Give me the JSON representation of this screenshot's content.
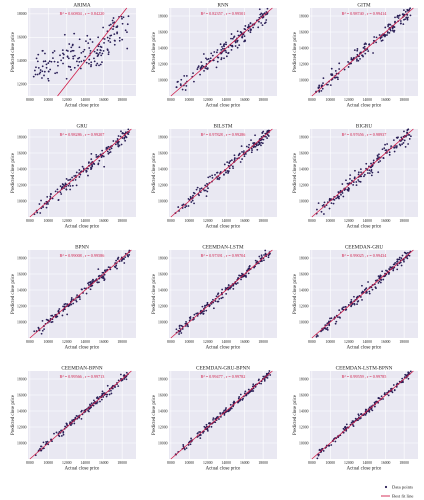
{
  "figure": {
    "legend": {
      "points_label": "Data points",
      "line_label": "Best fit line",
      "position": "bottom-right"
    },
    "colors": {
      "panel_bg": "#e9e8f2",
      "grid": "#ffffff",
      "points": "#2a1f57",
      "line": "#d11f4a",
      "annotation": "#d11f4a",
      "text": "#222222"
    }
  },
  "chart_data": [
    {
      "type": "scatter",
      "title": "ARIMA",
      "annotation": "R² = 0.60804 , r = 0.84220",
      "xlabel": "Actual close price",
      "ylabel": "Predicted close price",
      "xlim": [
        7800,
        19500
      ],
      "ylim": [
        11000,
        18500
      ],
      "xticks": [
        8000,
        10000,
        12000,
        14000,
        16000,
        18000
      ],
      "yticks": [
        12000,
        14000,
        16000,
        18000
      ],
      "grid": true,
      "noise": 750,
      "curve": "arima"
    },
    {
      "type": "scatter",
      "title": "RNN",
      "annotation": "R² = 0.82357 , r = 0.99501",
      "xlabel": "Actual close price",
      "ylabel": "Predicted close price",
      "xlim": [
        7800,
        19500
      ],
      "ylim": [
        8000,
        19000
      ],
      "xticks": [
        8000,
        10000,
        12000,
        14000,
        16000,
        18000
      ],
      "yticks": [
        10000,
        12000,
        14000,
        16000,
        18000
      ],
      "grid": true,
      "noise": 520
    },
    {
      "type": "scatter",
      "title": "GITM",
      "annotation": "R² = 0.98740 , r = 0.99414",
      "xlabel": "Actual close price",
      "ylabel": "Predicted close price",
      "xlim": [
        7800,
        19500
      ],
      "ylim": [
        8000,
        19000
      ],
      "xticks": [
        8000,
        10000,
        12000,
        14000,
        16000,
        18000
      ],
      "yticks": [
        10000,
        12000,
        14000,
        16000,
        18000
      ],
      "grid": true,
      "noise": 420
    },
    {
      "type": "scatter",
      "title": "GRU",
      "annotation": "R² = 0.98286 , r = 0.99207",
      "xlabel": "Actual close price",
      "ylabel": "Predicted close price",
      "xlim": [
        7800,
        19500
      ],
      "ylim": [
        8000,
        19000
      ],
      "xticks": [
        8000,
        10000,
        12000,
        14000,
        16000,
        18000
      ],
      "yticks": [
        10000,
        12000,
        14000,
        16000,
        18000
      ],
      "grid": true,
      "noise": 440
    },
    {
      "type": "scatter",
      "title": "BILSTM",
      "annotation": "R² = 0.97828 , r = 0.99286",
      "xlabel": "Actual close price",
      "ylabel": "Predicted close price",
      "xlim": [
        7800,
        19500
      ],
      "ylim": [
        8000,
        19000
      ],
      "xticks": [
        8000,
        10000,
        12000,
        14000,
        16000,
        18000
      ],
      "yticks": [
        10000,
        12000,
        14000,
        16000,
        18000
      ],
      "grid": true,
      "noise": 430
    },
    {
      "type": "scatter",
      "title": "BIGRU",
      "annotation": "R² = 0.97656 , r = 0.98937",
      "xlabel": "Actual close price",
      "ylabel": "Predicted close price",
      "xlim": [
        7800,
        19500
      ],
      "ylim": [
        8000,
        19000
      ],
      "xticks": [
        8000,
        10000,
        12000,
        14000,
        16000,
        18000
      ],
      "yticks": [
        10000,
        12000,
        14000,
        16000,
        18000
      ],
      "grid": true,
      "noise": 470
    },
    {
      "type": "scatter",
      "title": "BPNN",
      "annotation": "R² = 0.99008 , r = 0.99586",
      "xlabel": "Actual close price",
      "ylabel": "Predicted close price",
      "xlim": [
        7800,
        19500
      ],
      "ylim": [
        8000,
        19000
      ],
      "xticks": [
        8000,
        10000,
        12000,
        14000,
        16000,
        18000
      ],
      "yticks": [
        10000,
        12000,
        14000,
        16000,
        18000
      ],
      "grid": true,
      "noise": 340
    },
    {
      "type": "scatter",
      "title": "CEEMDAN-LSTM",
      "annotation": "R² = 0.97391 , r = 0.99704",
      "xlabel": "Actual close price",
      "ylabel": "Predicted close price",
      "xlim": [
        7800,
        19500
      ],
      "ylim": [
        8000,
        19000
      ],
      "xticks": [
        8000,
        10000,
        12000,
        14000,
        16000,
        18000
      ],
      "yticks": [
        10000,
        12000,
        14000,
        16000,
        18000
      ],
      "grid": true,
      "noise": 300
    },
    {
      "type": "scatter",
      "title": "CEEMDAN-GRU",
      "annotation": "R² = 0.99025 , r = 0.99434",
      "xlabel": "Actual close price",
      "ylabel": "Predicted close price",
      "xlim": [
        7800,
        19500
      ],
      "ylim": [
        8000,
        19000
      ],
      "xticks": [
        8000,
        10000,
        12000,
        14000,
        16000,
        18000
      ],
      "yticks": [
        10000,
        12000,
        14000,
        16000,
        18000
      ],
      "grid": true,
      "noise": 330
    },
    {
      "type": "scatter",
      "title": "CEEMDAN-BPNN",
      "annotation": "R² = 0.99566 , r = 0.99713",
      "xlabel": "Actual close price",
      "ylabel": "Predicted close price",
      "xlim": [
        7800,
        19500
      ],
      "ylim": [
        8000,
        19000
      ],
      "xticks": [
        8000,
        10000,
        12000,
        14000,
        16000,
        18000
      ],
      "yticks": [
        10000,
        12000,
        14000,
        16000,
        18000
      ],
      "grid": true,
      "noise": 240
    },
    {
      "type": "scatter",
      "title": "CEEMDAN-GRU-BPNN",
      "annotation": "R² = 0.99477 , r = 0.99782",
      "xlabel": "Actual close price",
      "ylabel": "Predicted close price",
      "xlim": [
        7800,
        19500
      ],
      "ylim": [
        8000,
        19000
      ],
      "xticks": [
        8000,
        10000,
        12000,
        14000,
        16000,
        18000
      ],
      "yticks": [
        10000,
        12000,
        14000,
        16000,
        18000
      ],
      "grid": true,
      "noise": 220
    },
    {
      "type": "scatter",
      "title": "CEEMDAN-LSTM-BPNN",
      "annotation": "R² = 0.99559 , r = 0.99785",
      "xlabel": "Actual close price",
      "ylabel": "Predicted close price",
      "xlim": [
        7800,
        19500
      ],
      "ylim": [
        8000,
        19000
      ],
      "xticks": [
        8000,
        10000,
        12000,
        14000,
        16000,
        18000
      ],
      "yticks": [
        10000,
        12000,
        14000,
        16000,
        18000
      ],
      "grid": true,
      "noise": 200
    }
  ]
}
